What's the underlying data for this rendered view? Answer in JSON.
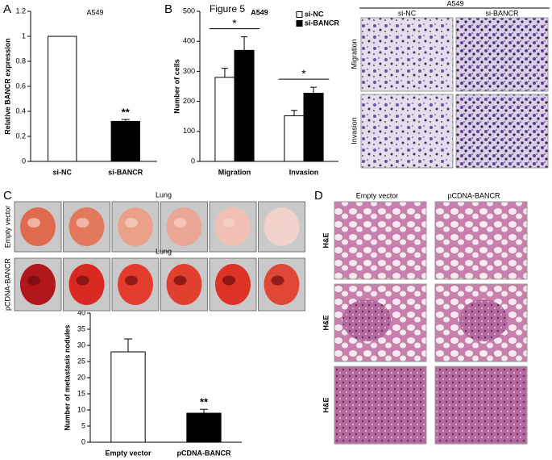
{
  "figure_title": "Figure 5",
  "panel_letters": [
    "A",
    "B",
    "C",
    "D"
  ],
  "chart_data": [
    {
      "type": "bar",
      "subtitle": "A549",
      "ylabel": "Relative BANCR expression",
      "categories": [
        "si-NC",
        "si-BANCR"
      ],
      "values": [
        1,
        0.32
      ],
      "errors": [
        0,
        0.015
      ],
      "colors": [
        "#ffffff",
        "#000000"
      ],
      "annotation": "**",
      "ylim": [
        0,
        1.2
      ],
      "yticks": [
        0,
        0.2,
        0.4,
        0.6,
        0.8,
        1,
        1.2
      ]
    },
    {
      "type": "grouped_bar",
      "subtitle": "A549",
      "ylabel": "Number of cells",
      "categories": [
        "Migration",
        "Invasion"
      ],
      "series": [
        {
          "name": "si-NC",
          "color": "#ffffff",
          "values": [
            280,
            152
          ],
          "errors": [
            30,
            18
          ]
        },
        {
          "name": "si-BANCR",
          "color": "#000000",
          "values": [
            370,
            227
          ],
          "errors": [
            45,
            20
          ]
        }
      ],
      "annotations": [
        "*",
        "*"
      ],
      "ylim": [
        0,
        500
      ],
      "yticks": [
        0,
        100,
        200,
        300,
        400,
        500
      ]
    },
    {
      "type": "bar",
      "ylabel": "Number of metastasis nodules",
      "categories": [
        "Empty vector",
        "pCDNA-BANCR"
      ],
      "values": [
        28,
        9
      ],
      "errors": [
        4,
        1.2
      ],
      "colors": [
        "#ffffff",
        "#000000"
      ],
      "annotation": "**",
      "ylim": [
        0,
        40
      ],
      "yticks": [
        0,
        5,
        10,
        15,
        20,
        25,
        30,
        35,
        40
      ]
    }
  ],
  "transwell": {
    "title": "A549",
    "columns": [
      "si-NC",
      "si-BANCR"
    ],
    "rows": [
      "Migration",
      "Invasion"
    ]
  },
  "lungs": {
    "captions": [
      "Lung",
      "Lung"
    ],
    "rows": [
      "Empty vector",
      "pCDNA-BANCR"
    ]
  },
  "histology": {
    "columns": [
      "Empty vector",
      "pCDNA-BANCR"
    ],
    "rows": [
      "H&E",
      "H&E",
      "H&E"
    ]
  }
}
